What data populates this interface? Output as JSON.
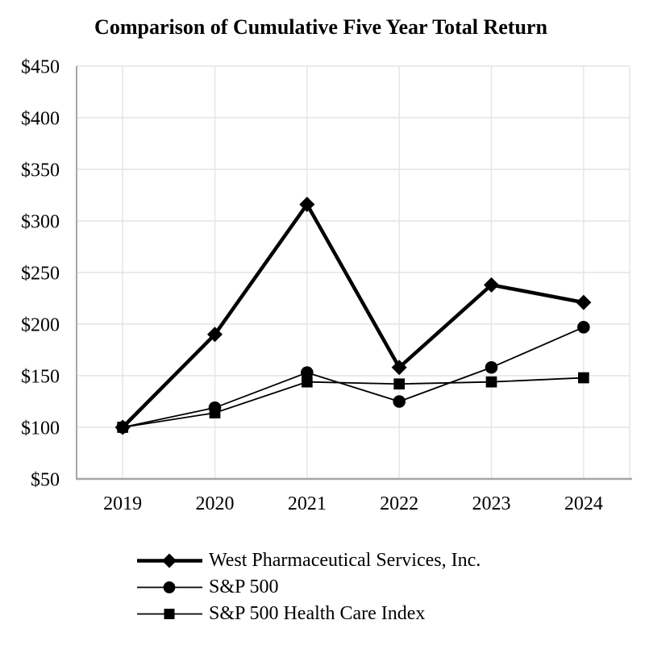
{
  "chart_data": {
    "type": "line",
    "title": "Comparison of Cumulative Five Year Total Return",
    "categories": [
      "2019",
      "2020",
      "2021",
      "2022",
      "2023",
      "2024"
    ],
    "series": [
      {
        "name": "West Pharmaceutical Services, Inc.",
        "marker": "diamond-marker-icon",
        "line_width": 4.5,
        "values": [
          100,
          190,
          316,
          158,
          238,
          221
        ]
      },
      {
        "name": "S&P 500",
        "marker": "circle-marker-icon",
        "line_width": 1.8,
        "values": [
          100,
          119,
          153,
          125,
          158,
          197
        ]
      },
      {
        "name": "S&P 500 Health Care Index",
        "marker": "square-marker-icon",
        "line_width": 1.8,
        "values": [
          100,
          114,
          144,
          142,
          144,
          148
        ]
      }
    ],
    "xlabel": "",
    "ylabel": "",
    "ylim": [
      50,
      450
    ],
    "yticks": [
      {
        "label": "$450",
        "value": 450
      },
      {
        "label": "$400",
        "value": 400
      },
      {
        "label": "$350",
        "value": 350
      },
      {
        "label": "$300",
        "value": 300
      },
      {
        "label": "$250",
        "value": 250
      },
      {
        "label": "$200",
        "value": 200
      },
      {
        "label": "$150",
        "value": 150
      },
      {
        "label": "$100",
        "value": 100
      },
      {
        "label": "$50",
        "value": 50
      }
    ],
    "grid": true,
    "legend_position": "bottom-left",
    "colors": {
      "series": "#000000",
      "grid": "#e4e4e4",
      "axis": "#a6a6a6",
      "text": "#000000",
      "background": "#ffffff"
    }
  }
}
